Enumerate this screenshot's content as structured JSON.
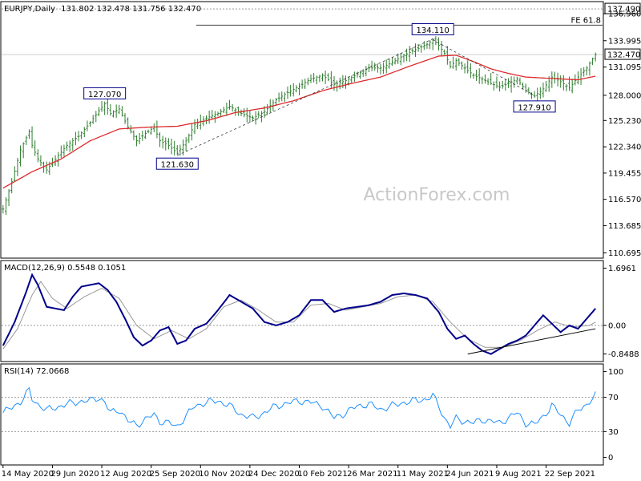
{
  "chart_data": [
    {
      "type": "candlestick",
      "title": "EURJPY,Daily",
      "ohlc": [
        131.802,
        132.478,
        131.756,
        132.47
      ],
      "ohlc_text": "131.802 132.478 131.756 132.470",
      "y_ticks": [
        "136.960",
        "133.995",
        "131.095",
        "128.000",
        "125.230",
        "122.340",
        "119.455",
        "116.570",
        "113.685",
        "110.695"
      ],
      "y_tick_values": [
        136.96,
        133.995,
        131.095,
        128.0,
        125.23,
        122.34,
        119.455,
        116.57,
        113.685,
        110.695
      ],
      "ylim": [
        110.2,
        138.2
      ],
      "price_path": [
        [
          0,
          115.5
        ],
        [
          3,
          118.5
        ],
        [
          6,
          122.0
        ],
        [
          9,
          124.0
        ],
        [
          10,
          122.5
        ],
        [
          12,
          121.0
        ],
        [
          15,
          119.8
        ],
        [
          18,
          121.0
        ],
        [
          22,
          122.5
        ],
        [
          26,
          123.5
        ],
        [
          30,
          125.0
        ],
        [
          33,
          126.3
        ],
        [
          35,
          127.07
        ],
        [
          37,
          126.0
        ],
        [
          40,
          126.5
        ],
        [
          43,
          124.5
        ],
        [
          46,
          123.0
        ],
        [
          49,
          123.8
        ],
        [
          52,
          124.5
        ],
        [
          54,
          123.0
        ],
        [
          57,
          122.5
        ],
        [
          60,
          121.63
        ],
        [
          63,
          123.0
        ],
        [
          66,
          124.8
        ],
        [
          70,
          125.5
        ],
        [
          74,
          126.0
        ],
        [
          78,
          126.8
        ],
        [
          82,
          126.0
        ],
        [
          86,
          125.5
        ],
        [
          90,
          126.2
        ],
        [
          94,
          127.5
        ],
        [
          98,
          128.3
        ],
        [
          102,
          129.0
        ],
        [
          106,
          129.8
        ],
        [
          110,
          130.2
        ],
        [
          114,
          129.2
        ],
        [
          118,
          129.6
        ],
        [
          122,
          130.3
        ],
        [
          126,
          131.0
        ],
        [
          130,
          131.0
        ],
        [
          134,
          131.6
        ],
        [
          138,
          132.4
        ],
        [
          142,
          133.0
        ],
        [
          146,
          133.6
        ],
        [
          148,
          134.11
        ],
        [
          150,
          133.5
        ],
        [
          152,
          132.6
        ],
        [
          154,
          131.2
        ],
        [
          156,
          131.8
        ],
        [
          159,
          131.0
        ],
        [
          162,
          130.2
        ],
        [
          165,
          129.8
        ],
        [
          168,
          129.3
        ],
        [
          171,
          128.9
        ],
        [
          174,
          129.3
        ],
        [
          177,
          129.8
        ],
        [
          180,
          128.5
        ],
        [
          183,
          127.91
        ],
        [
          186,
          128.7
        ],
        [
          189,
          130.0
        ],
        [
          192,
          129.5
        ],
        [
          195,
          128.8
        ],
        [
          198,
          130.0
        ],
        [
          201,
          131.0
        ],
        [
          204,
          132.47
        ]
      ],
      "ma_path": [
        [
          0,
          117.8
        ],
        [
          10,
          119.6
        ],
        [
          20,
          121.0
        ],
        [
          30,
          123.0
        ],
        [
          40,
          124.3
        ],
        [
          50,
          124.5
        ],
        [
          60,
          124.6
        ],
        [
          70,
          125.2
        ],
        [
          80,
          126.1
        ],
        [
          90,
          126.6
        ],
        [
          100,
          127.4
        ],
        [
          110,
          128.5
        ],
        [
          120,
          129.3
        ],
        [
          130,
          130.0
        ],
        [
          140,
          131.2
        ],
        [
          150,
          132.3
        ],
        [
          156,
          132.4
        ],
        [
          162,
          131.7
        ],
        [
          168,
          130.9
        ],
        [
          174,
          130.4
        ],
        [
          180,
          130.0
        ],
        [
          186,
          129.9
        ],
        [
          192,
          129.8
        ],
        [
          198,
          129.7
        ],
        [
          204,
          130.1
        ]
      ],
      "ma_color": "#dd2a2a",
      "candle_color": "#2e7d2e",
      "labels": [
        {
          "text": "127.070",
          "index": 35,
          "value": 127.07
        },
        {
          "text": "121.630",
          "index": 60,
          "value": 121.63
        },
        {
          "text": "134.110",
          "index": 148,
          "value": 134.11
        },
        {
          "text": "127.910",
          "index": 183,
          "value": 127.91
        }
      ],
      "trendlines": [
        {
          "from": [
            60,
            121.4
          ],
          "to": [
            148,
            134.2
          ],
          "style": "dashed"
        },
        {
          "from": [
            148,
            134.1
          ],
          "to": [
            183,
            128.0
          ],
          "style": "dashed"
        }
      ],
      "hlines": [
        {
          "value": 137.49,
          "label": "137.490",
          "style": "dotted",
          "color": "#999999"
        },
        {
          "value": 135.7,
          "label": "FE 61.8",
          "style": "solid",
          "color": "#444444"
        },
        {
          "value": 132.47,
          "label": "132.470",
          "style": "solid",
          "color": "#cfcfcf"
        }
      ],
      "watermark": "ActionForex.com"
    },
    {
      "type": "line",
      "title": "MACD(12,26,9) 0.5548 0.1051",
      "y_ticks": [
        "1.6961",
        "0.00",
        "-0.8488"
      ],
      "y_tick_values": [
        1.6961,
        0.0,
        -0.8488
      ],
      "ylim": [
        -1.05,
        1.9
      ],
      "zero_line": 0.0,
      "series": [
        {
          "role": "macd",
          "color": "#00008b",
          "points": [
            [
              0,
              -0.6
            ],
            [
              4,
              0.1
            ],
            [
              8,
              1.0
            ],
            [
              10,
              1.5
            ],
            [
              12,
              1.2
            ],
            [
              15,
              0.55
            ],
            [
              18,
              0.5
            ],
            [
              21,
              0.45
            ],
            [
              24,
              0.85
            ],
            [
              27,
              1.15
            ],
            [
              30,
              1.2
            ],
            [
              33,
              1.25
            ],
            [
              36,
              1.05
            ],
            [
              39,
              0.7
            ],
            [
              42,
              0.2
            ],
            [
              45,
              -0.35
            ],
            [
              48,
              -0.6
            ],
            [
              51,
              -0.45
            ],
            [
              54,
              -0.15
            ],
            [
              57,
              -0.05
            ],
            [
              60,
              -0.55
            ],
            [
              63,
              -0.45
            ],
            [
              66,
              -0.1
            ],
            [
              70,
              0.05
            ],
            [
              74,
              0.45
            ],
            [
              78,
              0.9
            ],
            [
              82,
              0.7
            ],
            [
              86,
              0.5
            ],
            [
              90,
              0.1
            ],
            [
              94,
              0.0
            ],
            [
              98,
              0.1
            ],
            [
              102,
              0.3
            ],
            [
              106,
              0.75
            ],
            [
              110,
              0.75
            ],
            [
              114,
              0.4
            ],
            [
              118,
              0.5
            ],
            [
              122,
              0.55
            ],
            [
              126,
              0.6
            ],
            [
              130,
              0.7
            ],
            [
              134,
              0.9
            ],
            [
              138,
              0.95
            ],
            [
              142,
              0.9
            ],
            [
              146,
              0.8
            ],
            [
              150,
              0.4
            ],
            [
              153,
              -0.1
            ],
            [
              156,
              -0.4
            ],
            [
              159,
              -0.3
            ],
            [
              162,
              -0.55
            ],
            [
              165,
              -0.75
            ],
            [
              168,
              -0.85
            ],
            [
              171,
              -0.7
            ],
            [
              174,
              -0.55
            ],
            [
              177,
              -0.45
            ],
            [
              180,
              -0.3
            ],
            [
              183,
              0.0
            ],
            [
              186,
              0.3
            ],
            [
              189,
              0.05
            ],
            [
              192,
              -0.2
            ],
            [
              195,
              0.0
            ],
            [
              198,
              -0.1
            ],
            [
              201,
              0.2
            ],
            [
              204,
              0.5
            ]
          ]
        },
        {
          "role": "signal",
          "color": "#999999",
          "points": [
            [
              0,
              -0.7
            ],
            [
              5,
              -0.1
            ],
            [
              10,
              0.9
            ],
            [
              13,
              1.3
            ],
            [
              17,
              0.8
            ],
            [
              22,
              0.5
            ],
            [
              28,
              0.85
            ],
            [
              34,
              1.1
            ],
            [
              40,
              0.8
            ],
            [
              46,
              0.0
            ],
            [
              52,
              -0.4
            ],
            [
              58,
              -0.15
            ],
            [
              64,
              -0.4
            ],
            [
              70,
              -0.1
            ],
            [
              76,
              0.55
            ],
            [
              82,
              0.75
            ],
            [
              88,
              0.45
            ],
            [
              94,
              0.1
            ],
            [
              100,
              0.1
            ],
            [
              106,
              0.6
            ],
            [
              112,
              0.65
            ],
            [
              118,
              0.45
            ],
            [
              124,
              0.55
            ],
            [
              130,
              0.65
            ],
            [
              136,
              0.85
            ],
            [
              142,
              0.9
            ],
            [
              148,
              0.7
            ],
            [
              154,
              0.1
            ],
            [
              160,
              -0.4
            ],
            [
              166,
              -0.65
            ],
            [
              172,
              -0.65
            ],
            [
              178,
              -0.45
            ],
            [
              184,
              -0.15
            ],
            [
              190,
              0.1
            ],
            [
              196,
              -0.05
            ],
            [
              202,
              0.0
            ],
            [
              204,
              0.1
            ]
          ]
        }
      ],
      "trendlines": [
        {
          "from": [
            160,
            -0.85
          ],
          "to": [
            204,
            -0.1
          ],
          "style": "solid"
        }
      ]
    },
    {
      "type": "line",
      "title": "RSI(14) 72.0668",
      "y_ticks": [
        "100",
        "70",
        "30",
        "0"
      ],
      "y_tick_values": [
        100,
        70,
        30,
        0
      ],
      "ylim": [
        -8,
        108
      ],
      "levels": [
        70,
        30
      ],
      "series": [
        {
          "role": "rsi",
          "color": "#1e90ff",
          "points": [
            [
              0,
              52
            ],
            [
              3,
              58
            ],
            [
              6,
              65
            ],
            [
              9,
              78
            ],
            [
              10,
              68
            ],
            [
              12,
              62
            ],
            [
              15,
              55
            ],
            [
              18,
              58
            ],
            [
              22,
              62
            ],
            [
              26,
              65
            ],
            [
              30,
              66
            ],
            [
              33,
              70
            ],
            [
              35,
              64
            ],
            [
              37,
              52
            ],
            [
              40,
              56
            ],
            [
              43,
              42
            ],
            [
              46,
              38
            ],
            [
              49,
              44
            ],
            [
              52,
              50
            ],
            [
              54,
              42
            ],
            [
              57,
              40
            ],
            [
              60,
              36
            ],
            [
              63,
              48
            ],
            [
              66,
              60
            ],
            [
              70,
              64
            ],
            [
              74,
              66
            ],
            [
              78,
              60
            ],
            [
              82,
              50
            ],
            [
              86,
              46
            ],
            [
              90,
              52
            ],
            [
              94,
              60
            ],
            [
              98,
              63
            ],
            [
              102,
              66
            ],
            [
              106,
              64
            ],
            [
              110,
              60
            ],
            [
              114,
              46
            ],
            [
              118,
              52
            ],
            [
              122,
              60
            ],
            [
              126,
              62
            ],
            [
              130,
              56
            ],
            [
              134,
              60
            ],
            [
              138,
              64
            ],
            [
              142,
              66
            ],
            [
              146,
              68
            ],
            [
              148,
              72
            ],
            [
              150,
              60
            ],
            [
              152,
              46
            ],
            [
              154,
              36
            ],
            [
              156,
              45
            ],
            [
              159,
              42
            ],
            [
              162,
              40
            ],
            [
              165,
              44
            ],
            [
              168,
              42
            ],
            [
              171,
              40
            ],
            [
              174,
              46
            ],
            [
              177,
              52
            ],
            [
              180,
              40
            ],
            [
              183,
              38
            ],
            [
              186,
              48
            ],
            [
              189,
              60
            ],
            [
              192,
              50
            ],
            [
              195,
              40
            ],
            [
              198,
              55
            ],
            [
              201,
              62
            ],
            [
              204,
              72
            ]
          ]
        }
      ]
    }
  ],
  "x_axis": {
    "labels": [
      "14 May 2020",
      "29 Jun 2020",
      "12 Aug 2020",
      "25 Sep 2020",
      "10 Nov 2020",
      "24 Dec 2020",
      "10 Feb 2021",
      "26 Mar 2021",
      "11 May 2021",
      "24 Jun 2021",
      "9 Aug 2021",
      "22 Sep 2021"
    ],
    "label_indices": [
      0,
      17,
      34,
      51,
      68,
      85,
      102,
      119,
      136,
      153,
      170,
      187
    ],
    "bar_count": 205
  }
}
